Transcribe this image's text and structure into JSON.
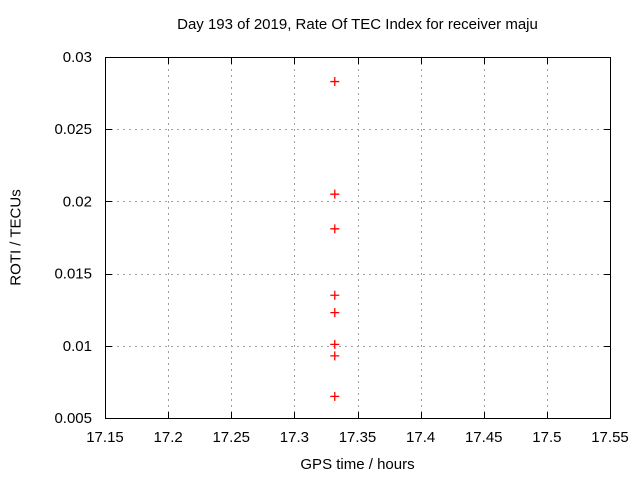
{
  "chart_data": {
    "type": "scatter",
    "title": "Day 193 of 2019, Rate Of TEC Index for receiver maju",
    "xlabel": "GPS time / hours",
    "ylabel": "ROTI / TECUs",
    "xlim": [
      17.15,
      17.55
    ],
    "ylim": [
      0.005,
      0.03
    ],
    "x_ticks": [
      17.15,
      17.2,
      17.25,
      17.3,
      17.35,
      17.4,
      17.45,
      17.5,
      17.55
    ],
    "x_tick_labels": [
      "17.15",
      "17.2",
      "17.25",
      "17.3",
      "17.35",
      "17.4",
      "17.45",
      "17.5",
      "17.55"
    ],
    "y_ticks": [
      0.005,
      0.01,
      0.015,
      0.02,
      0.025,
      0.03
    ],
    "y_tick_labels": [
      "0.005",
      "0.01",
      "0.015",
      "0.02",
      "0.025",
      "0.03"
    ],
    "grid": true,
    "legend_position": "none",
    "marker_style": "plus",
    "series": [
      {
        "name": "ROTI",
        "points": [
          {
            "x": 17.332,
            "y": 0.0283
          },
          {
            "x": 17.332,
            "y": 0.0205
          },
          {
            "x": 17.332,
            "y": 0.0181
          },
          {
            "x": 17.332,
            "y": 0.0135
          },
          {
            "x": 17.332,
            "y": 0.0123
          },
          {
            "x": 17.332,
            "y": 0.0101
          },
          {
            "x": 17.332,
            "y": 0.0093
          },
          {
            "x": 17.332,
            "y": 0.0065
          }
        ]
      }
    ]
  },
  "colors": {
    "marker": "#ff0000",
    "grid": "#a0a0a0",
    "axis": "#000000",
    "text": "#000000",
    "background": "#ffffff"
  }
}
